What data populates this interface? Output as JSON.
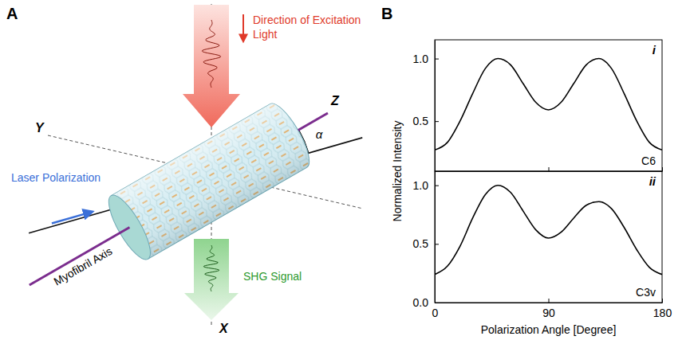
{
  "panel_a": {
    "letter": "A",
    "excitation_label": "Direction of Excitation Light",
    "laser_label": "Laser Polarization",
    "axis_label": "Myofibril Axis",
    "signal_label": "SHG Signal",
    "axis_x": "X",
    "axis_y": "Y",
    "axis_z": "Z",
    "angle": "α"
  },
  "panel_b": {
    "letter": "B",
    "ylabel": "Normalized Intensity",
    "xlabel": "Polarization Angle [Degree]"
  },
  "chart_data": [
    {
      "type": "line",
      "annotations": [
        "i",
        "C6"
      ],
      "x": [
        0,
        10,
        20,
        30,
        40,
        50,
        60,
        70,
        80,
        90,
        100,
        110,
        120,
        130,
        140,
        150,
        160,
        170,
        180
      ],
      "values": [
        0.27,
        0.33,
        0.5,
        0.72,
        0.92,
        1.0,
        0.95,
        0.8,
        0.65,
        0.59,
        0.65,
        0.8,
        0.95,
        1.0,
        0.92,
        0.72,
        0.5,
        0.33,
        0.27
      ],
      "color": "#000000",
      "xlim": [
        0,
        180
      ],
      "ylim": [
        0.1,
        1.15
      ],
      "xticks": [
        0,
        90,
        180
      ],
      "yticks": [
        0.5,
        {
          "value": 1,
          "label": "1.0"
        }
      ],
      "tick_labels": "y",
      "grid": false
    },
    {
      "type": "line",
      "annotations": [
        "ii",
        "C3v"
      ],
      "x": [
        0,
        10,
        20,
        30,
        40,
        50,
        60,
        70,
        80,
        90,
        100,
        110,
        120,
        130,
        140,
        150,
        160,
        170,
        180
      ],
      "values": [
        0.24,
        0.31,
        0.48,
        0.72,
        0.92,
        1.0,
        0.94,
        0.78,
        0.62,
        0.55,
        0.6,
        0.72,
        0.83,
        0.86,
        0.8,
        0.64,
        0.45,
        0.3,
        0.24
      ],
      "color": "#000000",
      "xlim": [
        0,
        180
      ],
      "ylim": [
        0,
        1.12
      ],
      "xticks": [
        0,
        90,
        180
      ],
      "yticks": [
        {
          "value": 0,
          "label": "0.0"
        },
        0.5,
        {
          "value": 1,
          "label": "1.0"
        }
      ],
      "grid": false
    }
  ]
}
